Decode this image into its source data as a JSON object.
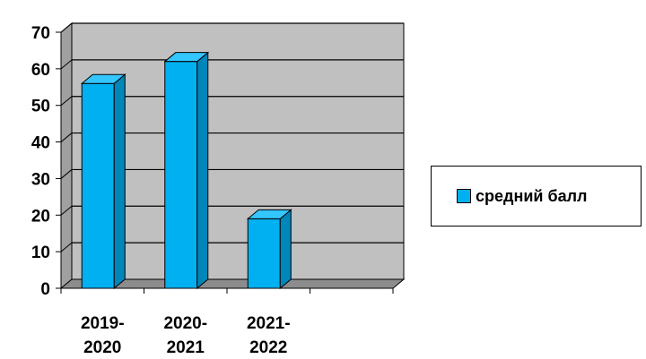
{
  "chart_data": {
    "type": "bar",
    "title": "",
    "xlabel": "",
    "ylabel": "",
    "categories": [
      [
        "2019-",
        "2020"
      ],
      [
        "2020-",
        "2021"
      ],
      [
        "2021-",
        "2022"
      ],
      [
        "",
        ""
      ]
    ],
    "series": [
      {
        "name": "средний балл",
        "values": [
          56,
          62,
          19,
          null
        ]
      }
    ],
    "ylim": [
      0,
      70
    ],
    "yticks": [
      "0",
      "10",
      "20",
      "30",
      "40",
      "50",
      "60",
      "70"
    ],
    "grid": true,
    "legend_position": "right",
    "colors": {
      "bar_front": "#00b0f0",
      "bar_side": "#0086b8",
      "bar_top": "#33c6ff",
      "plot_back": "#c0c0c0",
      "plot_side": "#a0a0a0",
      "plot_floor": "#8c8c8c"
    }
  }
}
